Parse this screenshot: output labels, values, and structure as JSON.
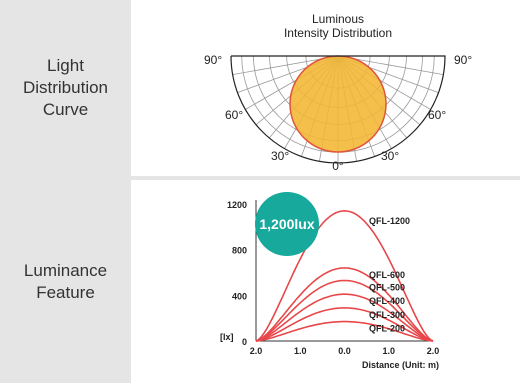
{
  "rows": [
    {
      "label_line1": "Light",
      "label_line2": "Distribution",
      "label_line3": "Curve"
    },
    {
      "label_line1": "Luminance",
      "label_line2": "Feature"
    }
  ],
  "polar": {
    "title_line1": "Luminous",
    "title_line2": "Intensity Distribution",
    "angle_labels": {
      "left90": "90°",
      "right90": "90°",
      "left60": "60°",
      "right60": "60°",
      "left30": "30°",
      "right30": "30°",
      "zero": "0°"
    },
    "fill_color": "#f2b632",
    "outline_color": "#e0563c"
  },
  "chart_data": {
    "type": "line",
    "x_tick_labels": [
      "2.0",
      "1.0",
      "0.0",
      "1.0",
      "2.0"
    ],
    "y_ticks": [
      0,
      400,
      800,
      1200
    ],
    "y_tick_labels": [
      "0",
      "400",
      "800",
      "1200"
    ],
    "ylim": [
      0,
      1200
    ],
    "xlim": [
      -2.0,
      2.0
    ],
    "ylabel": "[lx]",
    "xlabel": "Distance (Unit: m)",
    "badge": "1,200lux",
    "badge_color": "#16a99c",
    "line_color": "#e8474a",
    "series": [
      {
        "name": "QFL-1200",
        "peak": 1140
      },
      {
        "name": "QFL-600",
        "peak": 640
      },
      {
        "name": "QFL-500",
        "peak": 530
      },
      {
        "name": "QFL-400",
        "peak": 410
      },
      {
        "name": "QFL-300",
        "peak": 290
      },
      {
        "name": "QFL-200",
        "peak": 170
      }
    ]
  }
}
